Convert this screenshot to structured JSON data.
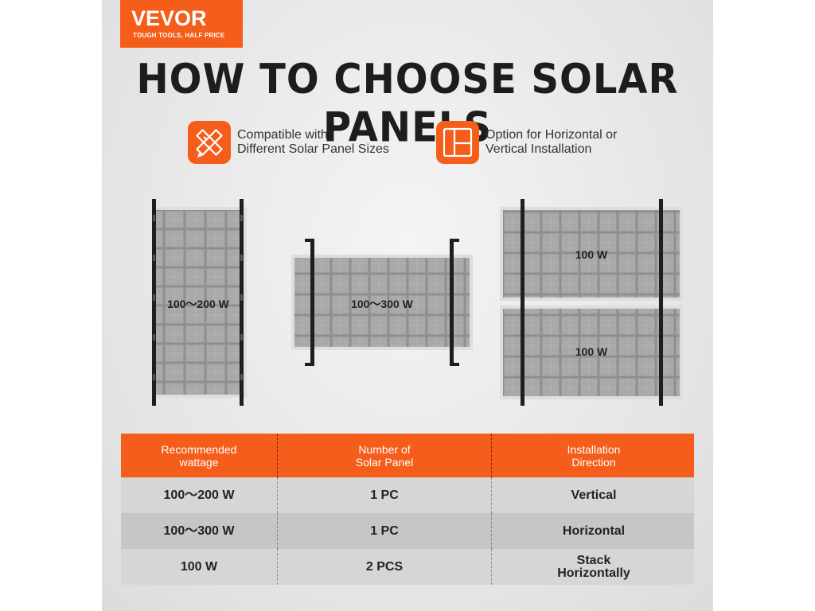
{
  "brand": {
    "name": "VEVOR",
    "slogan": "TOUGH TOOLS, HALF PRICE",
    "color": "#f45d1a"
  },
  "title": "HOW TO CHOOSE SOLAR PANELS",
  "features": [
    {
      "icon": "ruler-pencil-icon",
      "line1": "Compatible with",
      "line2": "Different Solar Panel Sizes"
    },
    {
      "icon": "layout-grid-icon",
      "line1": "Option for Horizontal or",
      "line2": "Vertical Installation"
    }
  ],
  "panels": {
    "vertical_label": "100～200 W",
    "horizontal_label": "100～300 W",
    "stack_top_label": "100 W",
    "stack_bottom_label": "100 W"
  },
  "table": {
    "headers": [
      {
        "line1": "Recommended",
        "line2": "wattage"
      },
      {
        "line1": "Number of",
        "line2": "Solar Panel"
      },
      {
        "line1": "Installation",
        "line2": "Direction"
      }
    ],
    "rows": [
      {
        "wattage": "100～200 W",
        "count": "1 PC",
        "direction": [
          "Vertical"
        ]
      },
      {
        "wattage": "100～300 W",
        "count": "1 PC",
        "direction": [
          "Horizontal"
        ]
      },
      {
        "wattage": "100 W",
        "count": "2 PCS",
        "direction": [
          "Stack",
          "Horizontally"
        ]
      }
    ]
  }
}
